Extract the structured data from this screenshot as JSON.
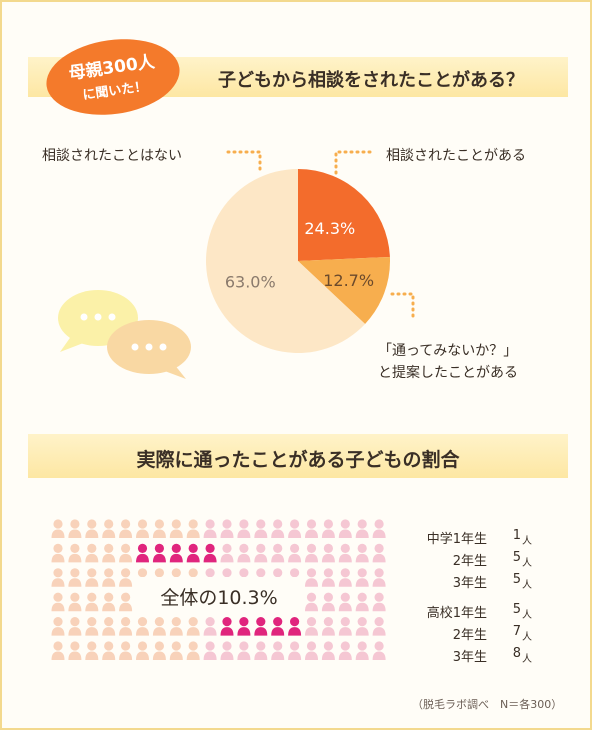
{
  "badge": {
    "line1": "母親300人",
    "line2": "に聞いた！"
  },
  "question": "子どもから相談をされたことがある？",
  "pie": {
    "label_no": "相談されたことはない",
    "label_yes": "相談されたことがある",
    "label_suggest_1": "「通ってみないか？」",
    "label_suggest_2": "と提案したことがある"
  },
  "section2_title": "実際に通ったことがある子どもの割合",
  "people_label": "全体の10.3%",
  "grades": [
    {
      "name": "中学1年生",
      "count": "1",
      "unit": "人"
    },
    {
      "name": "2年生",
      "count": "5",
      "unit": "人"
    },
    {
      "name": "3年生",
      "count": "5",
      "unit": "人"
    },
    {
      "name": "高校1年生",
      "count": "5",
      "unit": "人"
    },
    {
      "name": "2年生",
      "count": "7",
      "unit": "人"
    },
    {
      "name": "3年生",
      "count": "8",
      "unit": "人"
    }
  ],
  "source_note": "（脱毛ラボ調べ　N＝各300）",
  "colors": {
    "slice_yes": "#f36c2c",
    "slice_suggest": "#f7ae4e",
    "slice_no": "#fde7c6",
    "person_peach": "#f8d2ba",
    "person_pink": "#f5c7d3",
    "person_magenta": "#e0257d"
  },
  "chart_data": [
    {
      "type": "pie",
      "title": "子どもから相談をされたことがある？",
      "labels": [
        "相談されたことがある",
        "「通ってみないか？」と提案したことがある",
        "相談されたことはない"
      ],
      "values": [
        24.3,
        12.7,
        63.0
      ],
      "value_labels": [
        "24.3%",
        "12.7%",
        "63.0%"
      ]
    },
    {
      "type": "pictograph",
      "title": "実際に通ったことがある子どもの割合",
      "total_icons": 100,
      "highlighted_icons": 10,
      "highlight_label": "全体の10.3%"
    }
  ]
}
